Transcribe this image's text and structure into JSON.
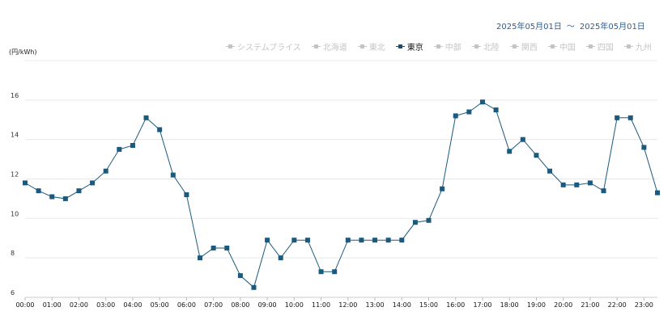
{
  "header": {
    "date_from": "2025年05月01日",
    "date_separator": "～",
    "date_to": "2025年05月01日"
  },
  "legend": [
    {
      "label": "システムプライス",
      "active": false
    },
    {
      "label": "北海道",
      "active": false
    },
    {
      "label": "東北",
      "active": false
    },
    {
      "label": "東京",
      "active": true
    },
    {
      "label": "中部",
      "active": false
    },
    {
      "label": "北陸",
      "active": false
    },
    {
      "label": "関西",
      "active": false
    },
    {
      "label": "中国",
      "active": false
    },
    {
      "label": "四国",
      "active": false
    },
    {
      "label": "九州",
      "active": false
    }
  ],
  "colors": {
    "series": "#1a5a7e",
    "inactive_legend": "#c4c4c4",
    "grid": "#e8e8e8",
    "date_text": "#2e5d8c"
  },
  "chart_data": {
    "type": "line",
    "title": "",
    "xlabel": "",
    "ylabel": "(円/kWh)",
    "ylim": [
      6,
      18
    ],
    "yticks": [
      6,
      8,
      10,
      12,
      14,
      16
    ],
    "grid": true,
    "legend_position": "top-right",
    "x_ticks": [
      "00:00",
      "01:00",
      "02:00",
      "03:00",
      "04:00",
      "05:00",
      "06:00",
      "07:00",
      "08:00",
      "09:00",
      "10:00",
      "11:00",
      "12:00",
      "13:00",
      "14:00",
      "15:00",
      "16:00",
      "17:00",
      "18:00",
      "19:00",
      "20:00",
      "21:00",
      "22:00",
      "23:00"
    ],
    "x": [
      "00:00",
      "00:30",
      "01:00",
      "01:30",
      "02:00",
      "02:30",
      "03:00",
      "03:30",
      "04:00",
      "04:30",
      "05:00",
      "05:30",
      "06:00",
      "06:30",
      "07:00",
      "07:30",
      "08:00",
      "08:30",
      "09:00",
      "09:30",
      "10:00",
      "10:30",
      "11:00",
      "11:30",
      "12:00",
      "12:30",
      "13:00",
      "13:30",
      "14:00",
      "14:30",
      "15:00",
      "15:30",
      "16:00",
      "16:30",
      "17:00",
      "17:30",
      "18:00",
      "18:30",
      "19:00",
      "19:30",
      "20:00",
      "20:30",
      "21:00",
      "21:30",
      "22:00",
      "22:30",
      "23:00",
      "23:30"
    ],
    "series": [
      {
        "name": "東京",
        "values": [
          11.8,
          11.4,
          11.1,
          11.0,
          11.4,
          11.8,
          12.4,
          13.5,
          13.7,
          15.1,
          14.5,
          12.2,
          11.2,
          8.0,
          8.5,
          8.5,
          7.1,
          6.5,
          8.9,
          8.0,
          8.9,
          8.9,
          7.3,
          7.3,
          8.9,
          8.9,
          8.9,
          8.9,
          8.9,
          9.8,
          9.9,
          11.5,
          15.2,
          15.4,
          15.9,
          15.5,
          13.4,
          14.0,
          13.2,
          12.4,
          11.7,
          11.7,
          11.8,
          11.4,
          15.1,
          15.1,
          13.6,
          11.3
        ]
      }
    ]
  }
}
